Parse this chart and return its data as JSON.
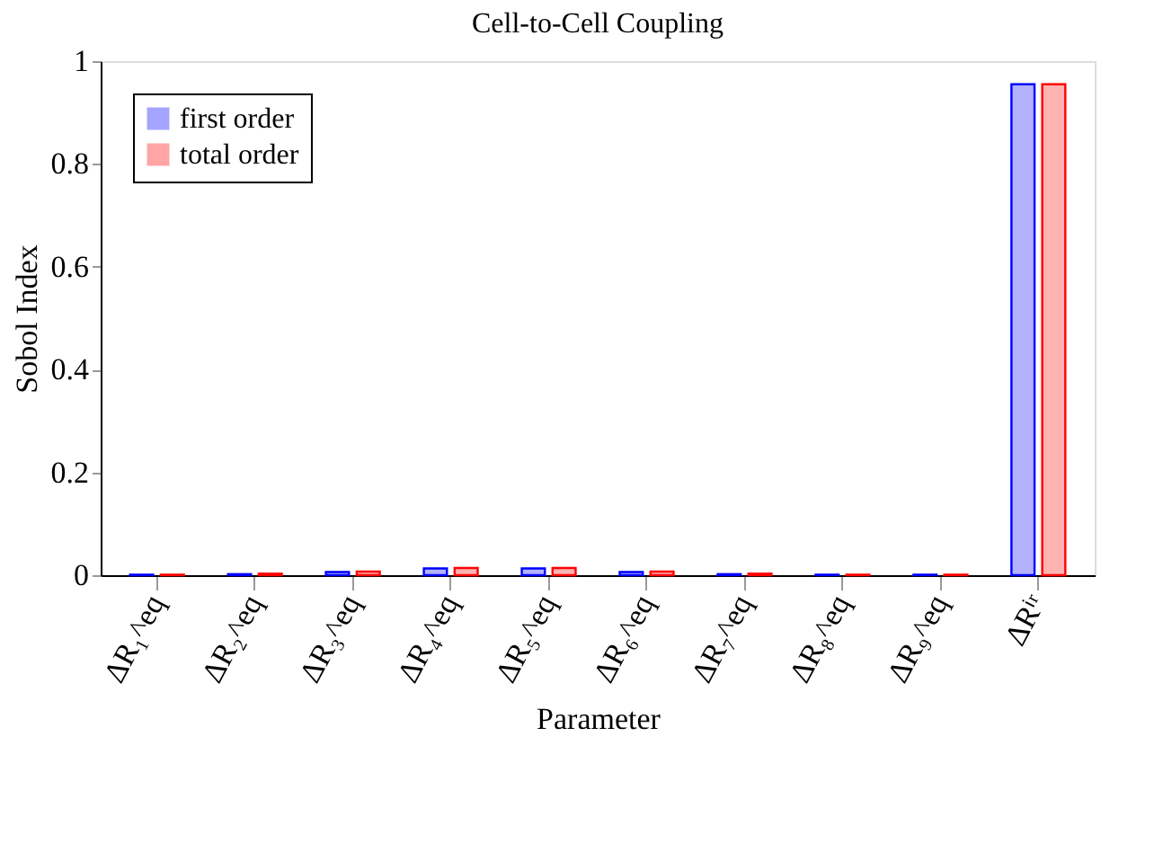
{
  "chart_data": {
    "type": "bar",
    "title": "Cell-to-Cell Coupling",
    "xlabel": "Parameter",
    "ylabel": "Sobol Index",
    "categories": [
      "ΔR₁^eq",
      "ΔR₂^eq",
      "ΔR₃^eq",
      "ΔR₄^eq",
      "ΔR₅^eq",
      "ΔR₆^eq",
      "ΔR₇^eq",
      "ΔR₈^eq",
      "ΔR₉^eq",
      "ΔRⁱʳ"
    ],
    "series": [
      {
        "name": "first order",
        "color": "#0000ff",
        "values": [
          0.001,
          0.002,
          0.006,
          0.013,
          0.013,
          0.006,
          0.002,
          0.001,
          0.001,
          0.955
        ]
      },
      {
        "name": "total order",
        "color": "#ff0000",
        "values": [
          0.001,
          0.003,
          0.007,
          0.014,
          0.014,
          0.007,
          0.003,
          0.001,
          0.001,
          0.955
        ]
      }
    ],
    "ylim": [
      0,
      1
    ],
    "yticks": [
      0,
      0.2,
      0.4,
      0.6,
      0.8,
      1
    ],
    "grid": false,
    "legend": "top left"
  }
}
